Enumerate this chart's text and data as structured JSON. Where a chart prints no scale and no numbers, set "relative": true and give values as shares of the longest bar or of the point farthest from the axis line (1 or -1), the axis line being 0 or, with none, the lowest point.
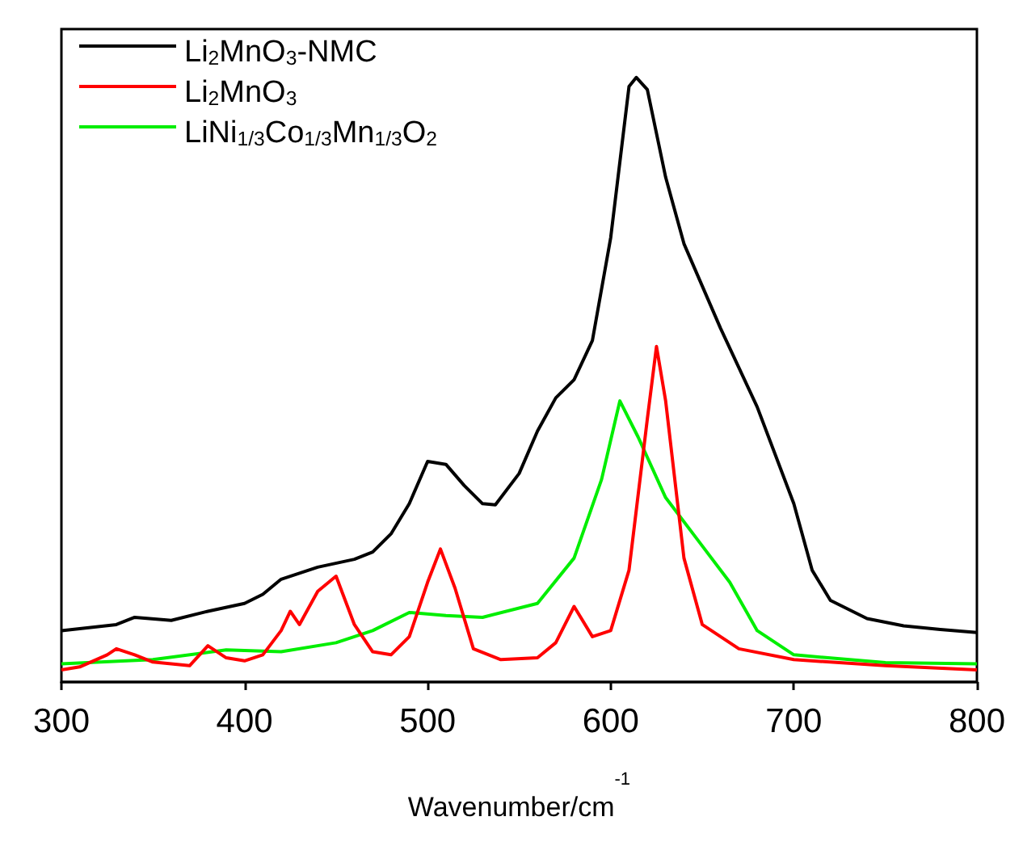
{
  "chart_data": {
    "type": "line",
    "relative": true,
    "xlabel": "Wavenumber/cm$^{-1}$",
    "xlim": [
      300,
      800
    ],
    "xticks": [
      300,
      400,
      500,
      600,
      700,
      800
    ],
    "legend": "top left",
    "grid": false,
    "marker": "none",
    "line_style": "solid",
    "series": [
      {
        "name": "Li$_{2}$MnO$_{3}$-NMC",
        "color": "#000000",
        "x": [
          300,
          330,
          340,
          360,
          380,
          400,
          410,
          420,
          440,
          460,
          470,
          480,
          490,
          500,
          510,
          520,
          530,
          537,
          550,
          560,
          570,
          580,
          590,
          600,
          610,
          614,
          620,
          630,
          640,
          660,
          680,
          700,
          710,
          720,
          740,
          760,
          780,
          800
        ],
        "values": [
          0.085,
          0.095,
          0.107,
          0.102,
          0.117,
          0.13,
          0.145,
          0.17,
          0.19,
          0.203,
          0.215,
          0.245,
          0.295,
          0.365,
          0.36,
          0.325,
          0.295,
          0.293,
          0.345,
          0.415,
          0.47,
          0.5,
          0.565,
          0.735,
          0.985,
          1.0,
          0.98,
          0.835,
          0.725,
          0.585,
          0.455,
          0.295,
          0.185,
          0.135,
          0.105,
          0.093,
          0.087,
          0.082
        ]
      },
      {
        "name": "Li$_{2}$MnO$_{3}$",
        "color": "#ff0000",
        "x": [
          300,
          310,
          325,
          330,
          340,
          350,
          370,
          380,
          390,
          400,
          410,
          420,
          425,
          430,
          440,
          450,
          460,
          470,
          480,
          490,
          500,
          507,
          515,
          525,
          540,
          560,
          570,
          580,
          590,
          600,
          610,
          620,
          625,
          630,
          640,
          650,
          670,
          700,
          750,
          800
        ],
        "values": [
          0.02,
          0.025,
          0.045,
          0.055,
          0.045,
          0.033,
          0.027,
          0.06,
          0.04,
          0.035,
          0.045,
          0.085,
          0.117,
          0.095,
          0.15,
          0.175,
          0.095,
          0.05,
          0.045,
          0.075,
          0.165,
          0.22,
          0.155,
          0.055,
          0.037,
          0.04,
          0.065,
          0.125,
          0.075,
          0.085,
          0.185,
          0.435,
          0.555,
          0.465,
          0.205,
          0.095,
          0.055,
          0.037,
          0.027,
          0.02
        ]
      },
      {
        "name": "LiNi$_{1/3}$Co$_{1/3}$Mn$_{1/3}$O$_{2}$",
        "color": "#00ee00",
        "x": [
          300,
          350,
          390,
          420,
          450,
          470,
          490,
          510,
          530,
          560,
          580,
          595,
          605,
          615,
          630,
          650,
          665,
          680,
          700,
          750,
          800
        ],
        "values": [
          0.03,
          0.037,
          0.053,
          0.05,
          0.065,
          0.085,
          0.115,
          0.11,
          0.107,
          0.13,
          0.205,
          0.335,
          0.465,
          0.405,
          0.305,
          0.225,
          0.165,
          0.085,
          0.045,
          0.032,
          0.03
        ]
      }
    ]
  }
}
